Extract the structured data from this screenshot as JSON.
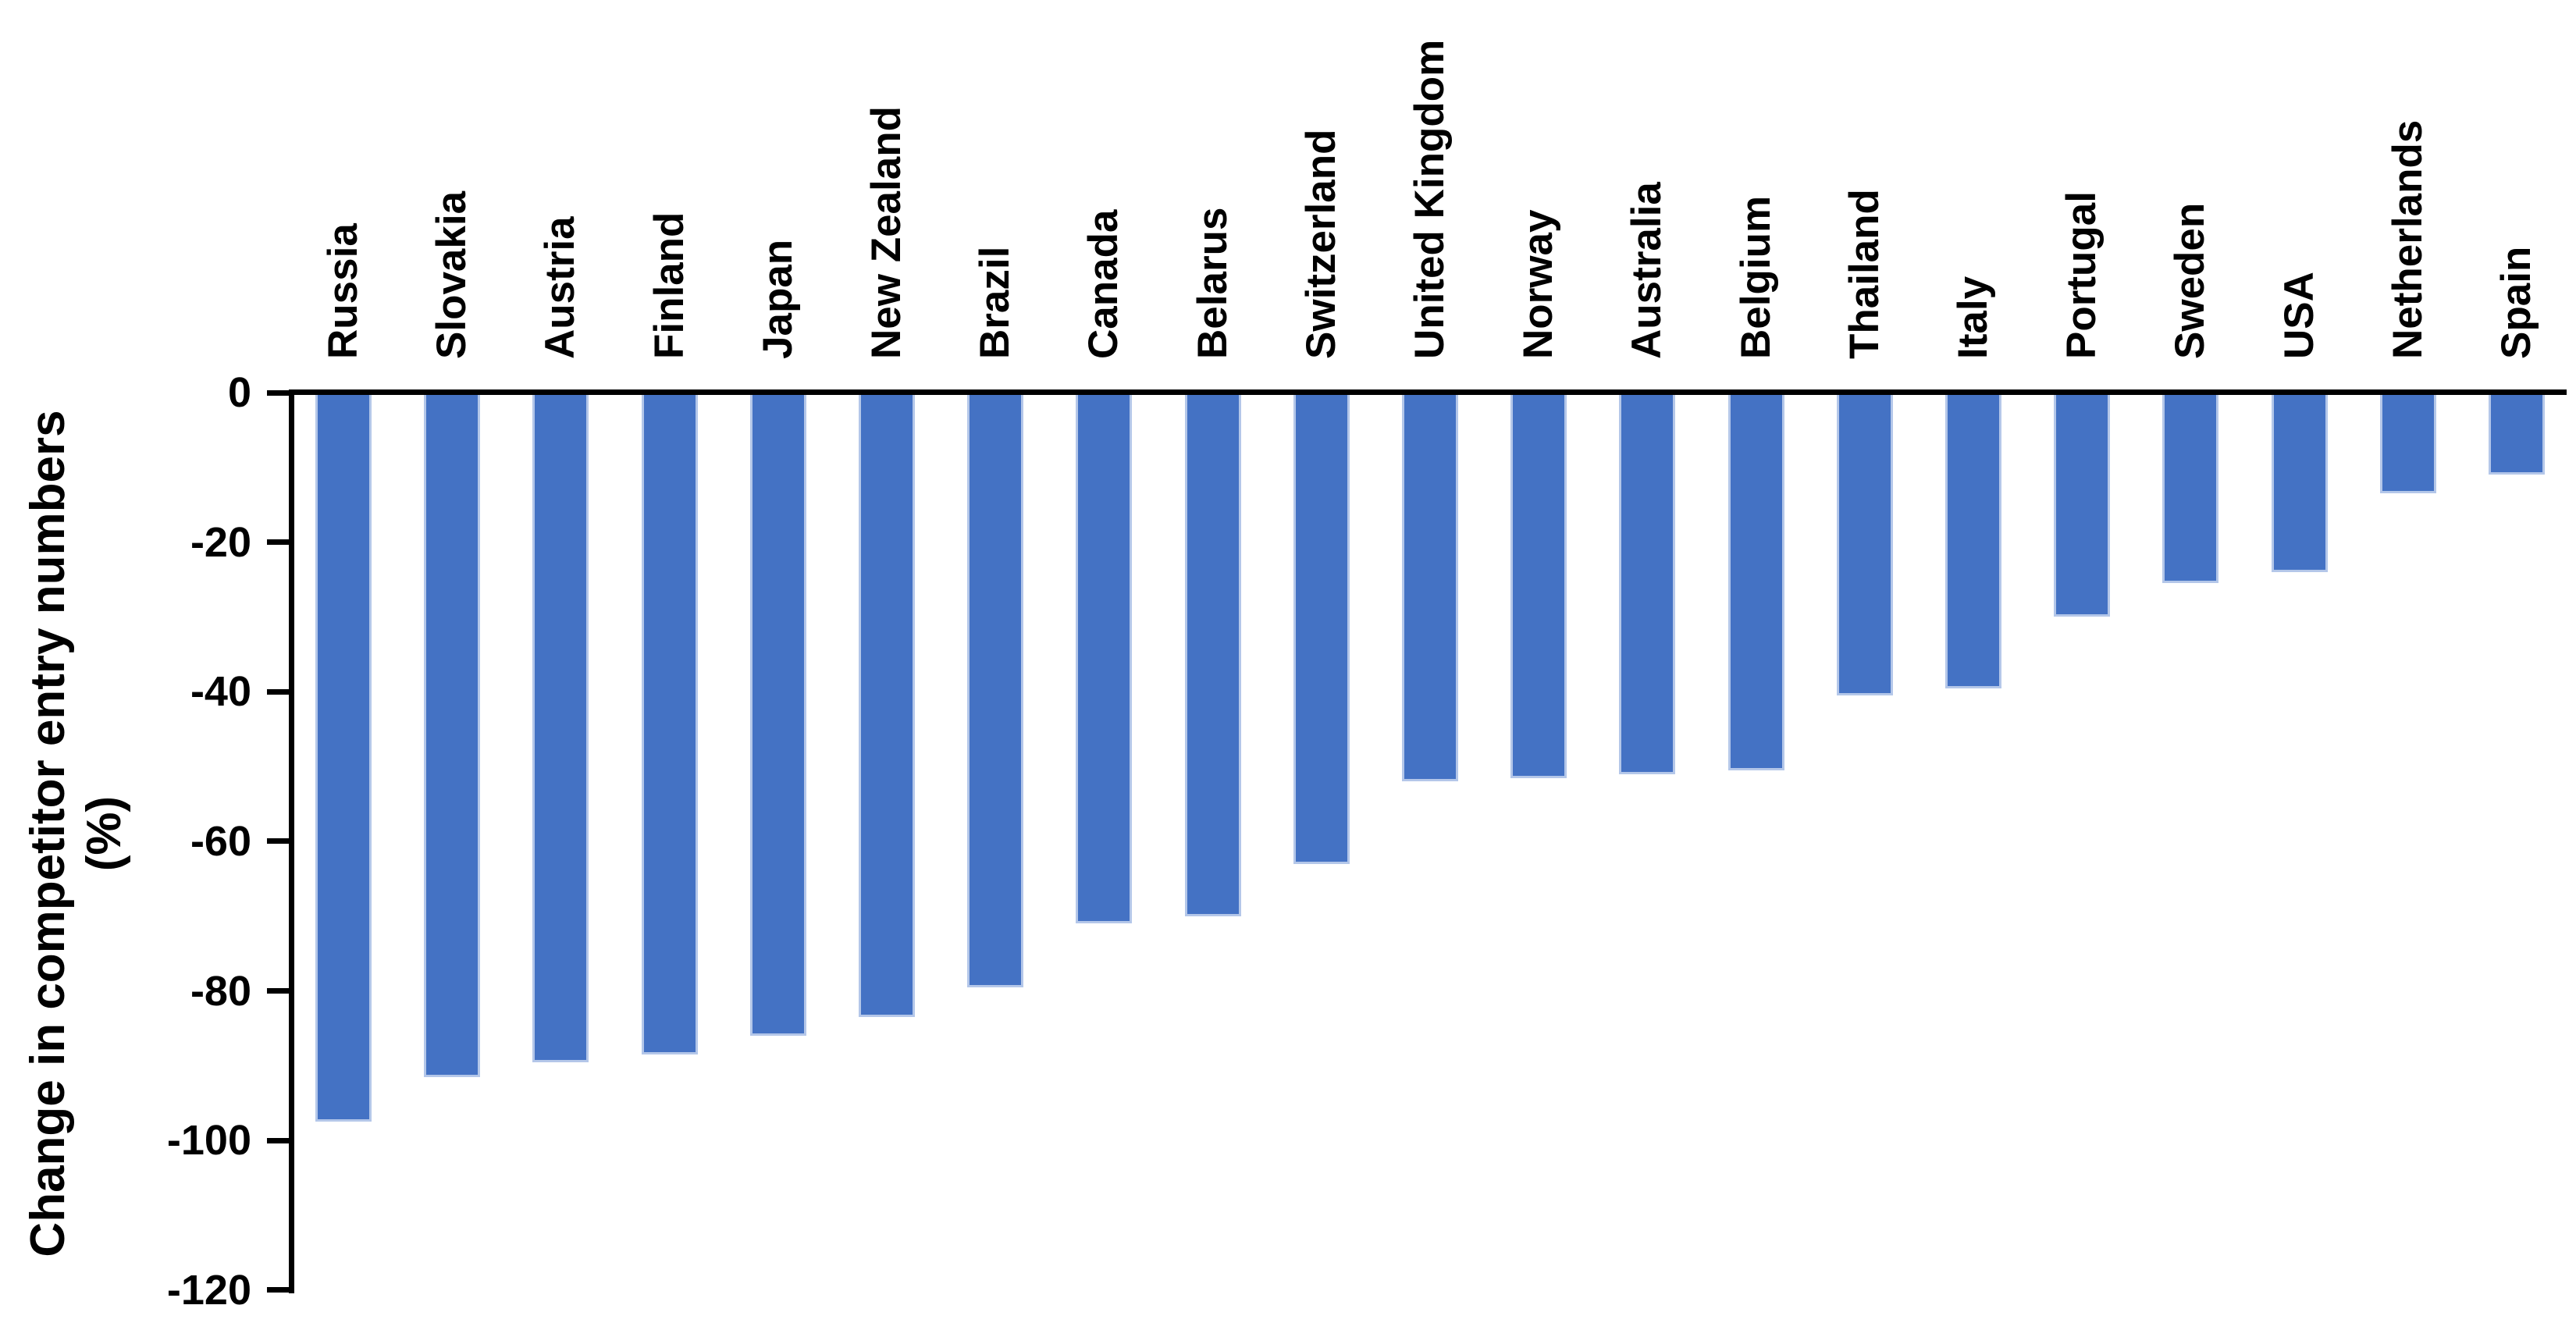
{
  "chart_data": {
    "type": "bar",
    "title": "",
    "orientation": "vertical-negative",
    "categories": [
      "Russia",
      "Slovakia",
      "Austria",
      "Finland",
      "Japan",
      "New Zealand",
      "Brazil",
      "Canada",
      "Belarus",
      "Switzerland",
      "United Kingdom",
      "Norway",
      "Australia",
      "Belgium",
      "Thailand",
      "Italy",
      "Portugal",
      "Sweden",
      "USA",
      "Netherlands",
      "Spain"
    ],
    "values": [
      -97.5,
      -91.5,
      -89.5,
      -88.5,
      -86,
      -83.5,
      -79.5,
      -71,
      -70,
      -63,
      -52,
      -51.5,
      -51,
      -50.5,
      -40.5,
      -39.5,
      -30,
      -25.5,
      -24,
      -13.5,
      -11
    ],
    "xlabel": "",
    "ylabel_line1": "Change in competitor entry numbers",
    "ylabel_line2": "(%)",
    "yticks": [
      0,
      -20,
      -40,
      -60,
      -80,
      -100,
      -120
    ],
    "ytick_labels": [
      "0",
      "-20",
      "-40",
      "-60",
      "-80",
      "-100",
      "-120"
    ],
    "ylim": [
      -120,
      0
    ],
    "grid": false,
    "legend": "none",
    "bar_color": "#4472C4",
    "bar_edge_color": "#B4C7E9",
    "axis_color": "#000000",
    "text_color": "#000000",
    "background_color": "#FFFFFF",
    "category_label_position": "top-rotated-90",
    "bar_count": 21
  }
}
